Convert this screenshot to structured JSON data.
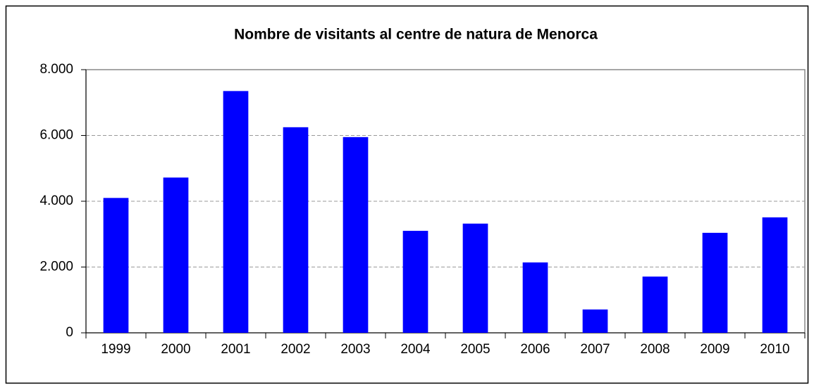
{
  "chart_data": {
    "type": "bar",
    "title": "Nombre de visitants al centre de natura de Menorca",
    "categories": [
      "1999",
      "2000",
      "2001",
      "2002",
      "2003",
      "2004",
      "2005",
      "2006",
      "2007",
      "2008",
      "2009",
      "2010"
    ],
    "values": [
      4100,
      4720,
      7350,
      6250,
      5950,
      3100,
      3320,
      2140,
      710,
      1710,
      3040,
      3510
    ],
    "color": "#0000ff",
    "ylim": [
      0,
      8000
    ],
    "yticks": [
      0,
      {
        "value": 2000,
        "label": "2.000"
      },
      {
        "value": 4000,
        "label": "4.000"
      },
      {
        "value": 6000,
        "label": "6.000"
      },
      {
        "value": 8000,
        "label": "8.000"
      }
    ],
    "grid": true
  }
}
